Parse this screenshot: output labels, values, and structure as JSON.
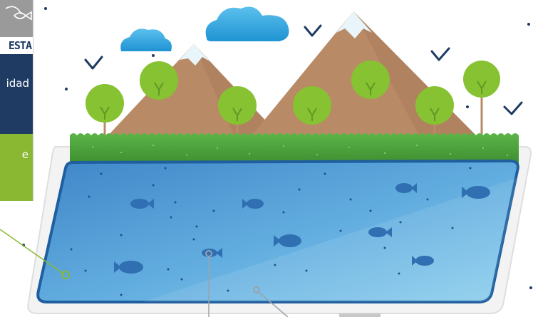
{
  "left_panel": {
    "tag_text": "ESTA",
    "navy_text": "idad",
    "green_text": "e",
    "icon": "fish-outline-icon"
  },
  "colors": {
    "navy": "#1f3b63",
    "green": "#8ab833",
    "sky_blue": "#2a9fd8",
    "water": "#4f97d4",
    "mountain": "#b98a66",
    "snow": "#e8f6fc",
    "grass": "#4c9e3a",
    "tree": "#86c232",
    "fish": "#2f6fb2",
    "callout_green": "#8ab833",
    "callout_gray": "#9aa3ab"
  }
}
